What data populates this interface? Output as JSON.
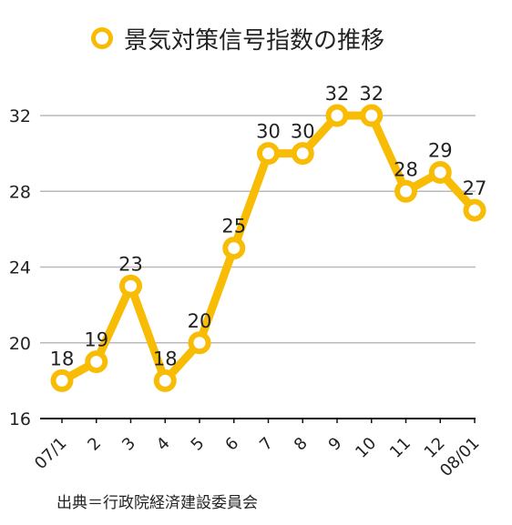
{
  "chart_data": {
    "type": "line",
    "title": "",
    "xlabel": "",
    "ylabel": "",
    "categories": [
      "07/1",
      "2",
      "3",
      "4",
      "5",
      "6",
      "7",
      "8",
      "9",
      "10",
      "11",
      "12",
      "08/01"
    ],
    "series": [
      {
        "name": "景気対策信号指数の推移",
        "values": [
          18,
          19,
          23,
          18,
          20,
          25,
          30,
          30,
          32,
          32,
          28,
          29,
          27
        ]
      }
    ],
    "ylim": [
      16,
      32
    ],
    "yticks": [
      16,
      20,
      24,
      28,
      32
    ],
    "grid": true,
    "legend": "top",
    "data_labels": true,
    "line_color": "#f8bc05"
  },
  "source_note": "出典＝行政院経済建設委員会"
}
